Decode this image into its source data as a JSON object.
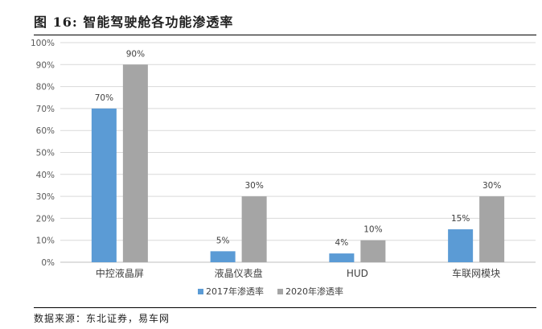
{
  "figure": {
    "title": "图  16:  智能驾驶舱各功能渗透率",
    "source": "数据来源：东北证券，易车网"
  },
  "chart_data": {
    "type": "bar",
    "categories": [
      "中控液晶屏",
      "液晶仪表盘",
      "HUD",
      "车联网模块"
    ],
    "series": [
      {
        "name": "2017年渗透率",
        "values": [
          70,
          5,
          4,
          15
        ],
        "labels": [
          "70%",
          "5%",
          "4%",
          "15%"
        ],
        "color": "#5B9BD5"
      },
      {
        "name": "2020年渗透率",
        "values": [
          90,
          30,
          10,
          30
        ],
        "labels": [
          "90%",
          "30%",
          "10%",
          "30%"
        ],
        "color": "#A5A5A5"
      }
    ],
    "yticks": [
      "0%",
      "10%",
      "20%",
      "30%",
      "40%",
      "50%",
      "60%",
      "70%",
      "80%",
      "90%",
      "100%"
    ],
    "ylim": [
      0,
      100
    ],
    "grid": true,
    "legend": "bottom"
  }
}
